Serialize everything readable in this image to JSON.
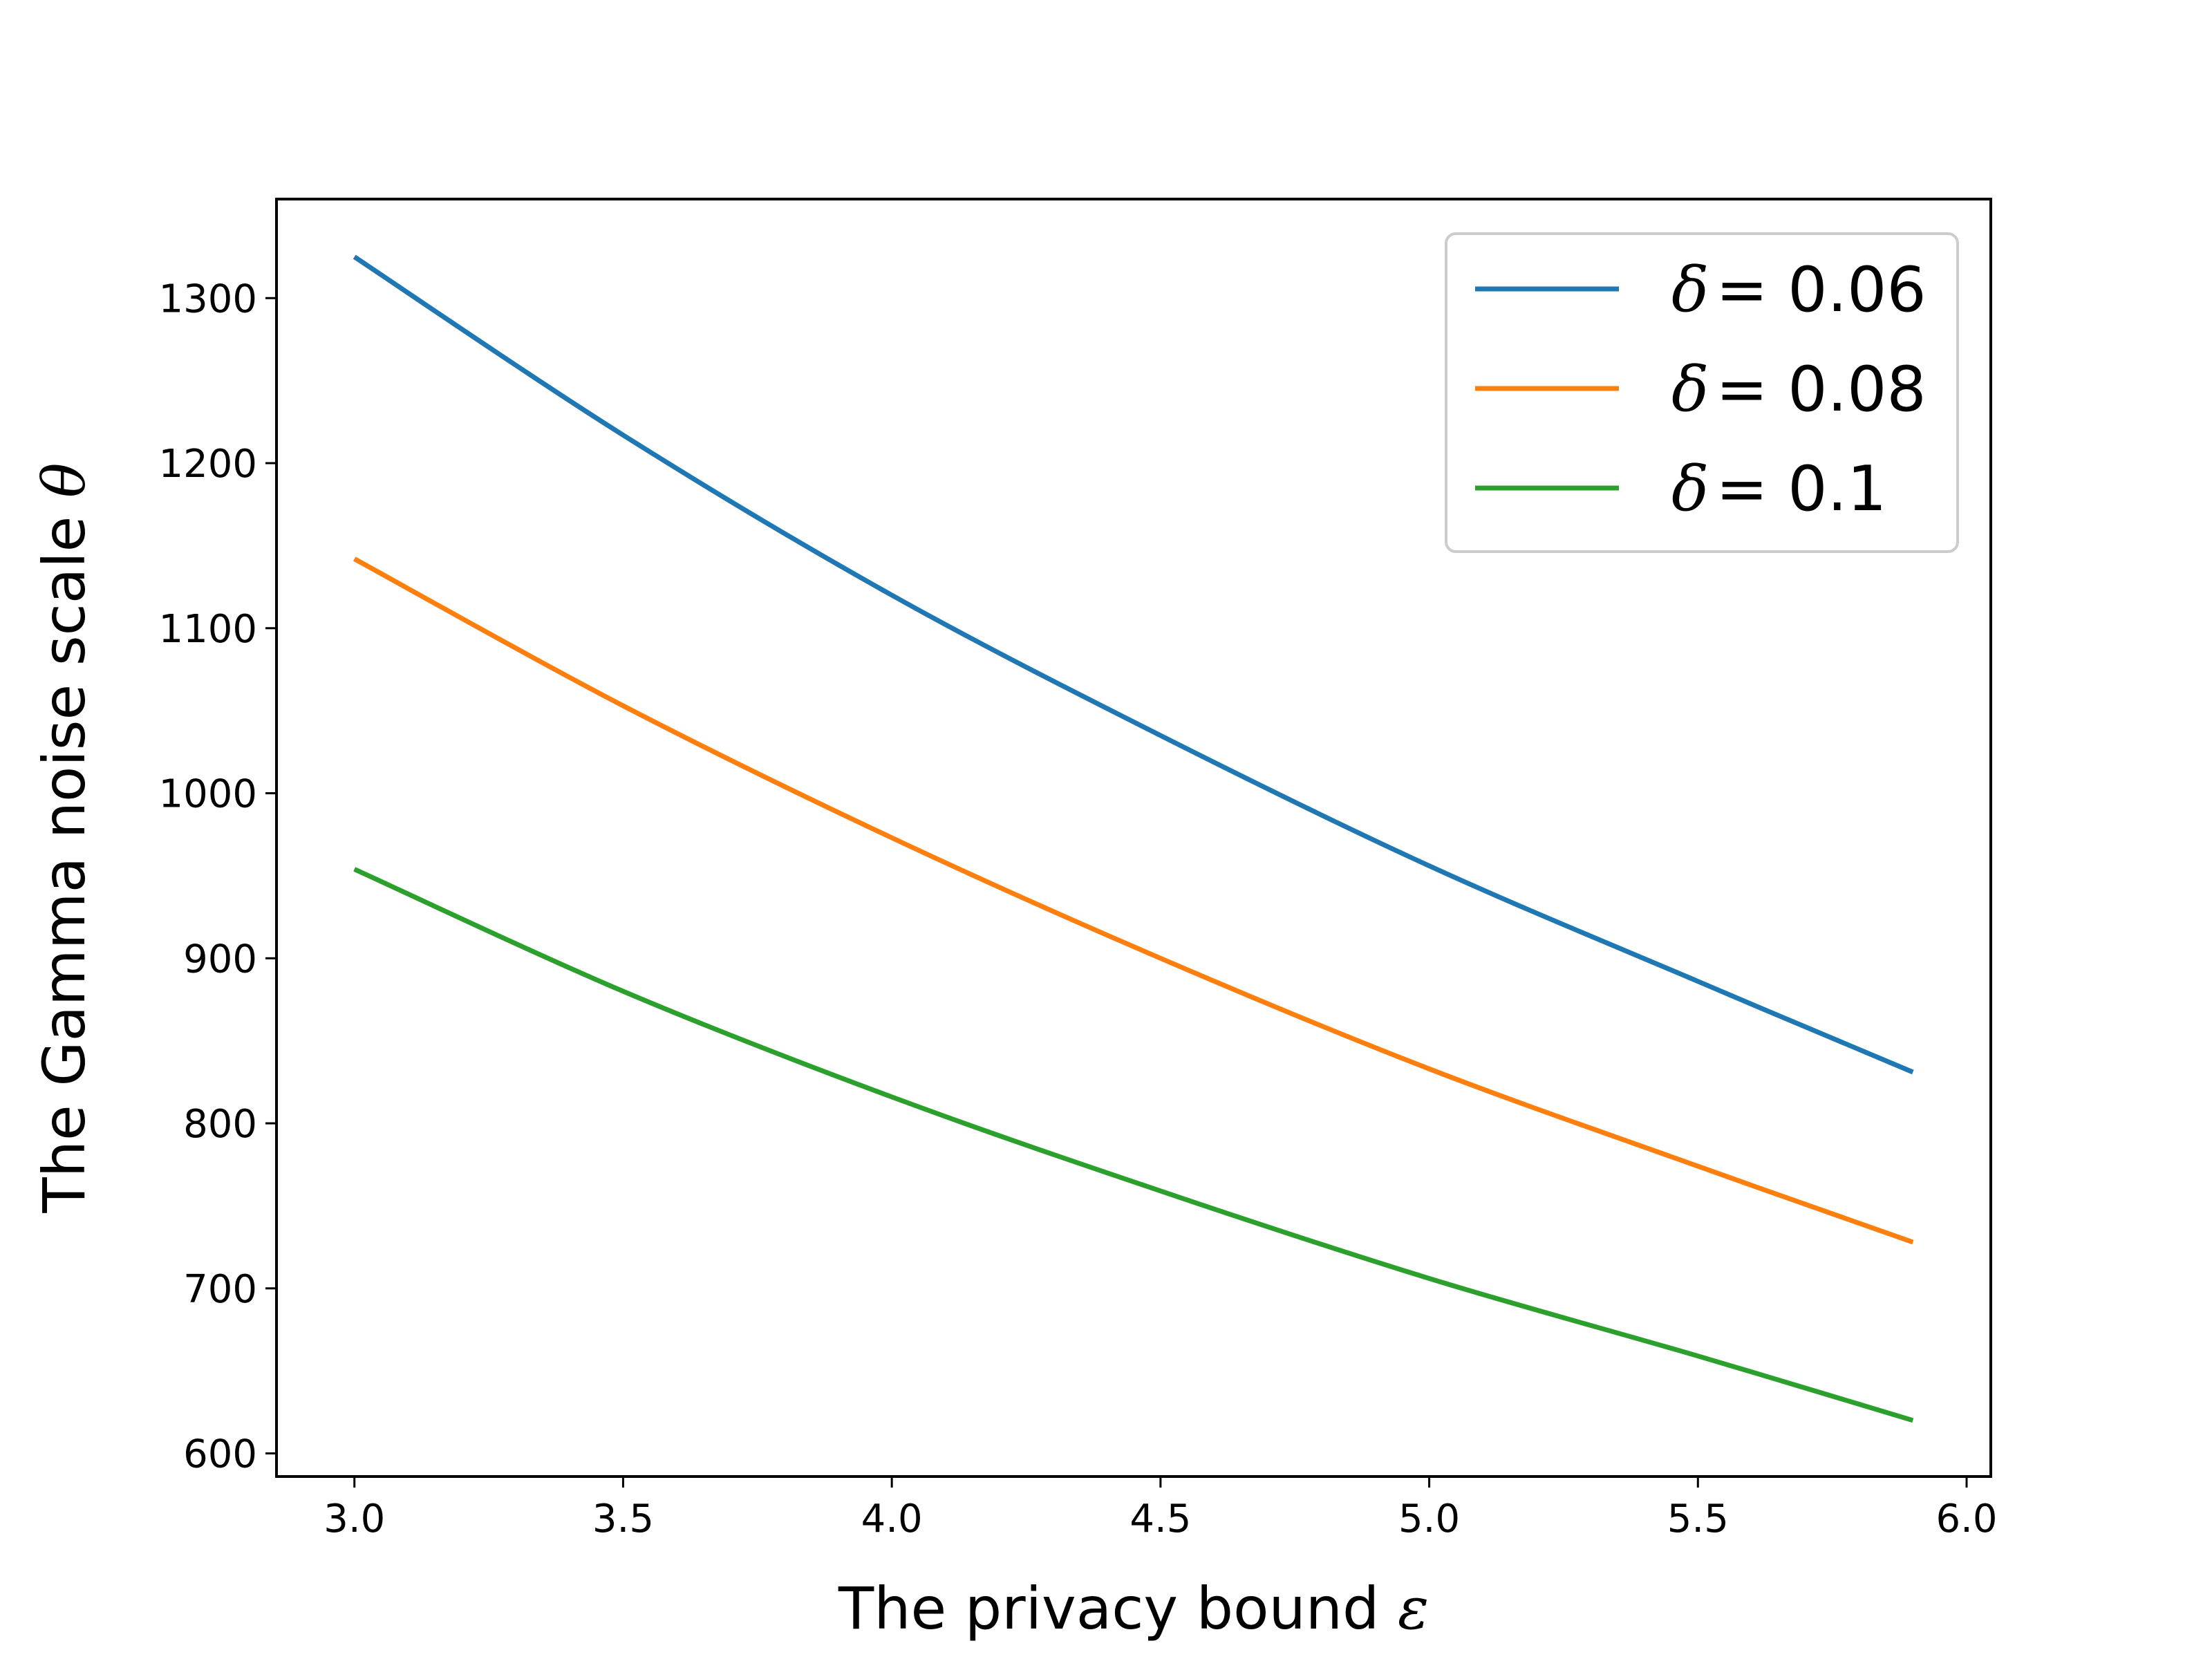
{
  "chart_data": {
    "type": "line",
    "xlabel_text": "The privacy bound ",
    "xlabel_symbol": "ε",
    "ylabel_text": "The Gamma noise scale ",
    "ylabel_symbol": "θ",
    "xlim": [
      2.855,
      6.045
    ],
    "ylim": [
      586,
      1360
    ],
    "x_ticks": [
      3.0,
      3.5,
      4.0,
      4.5,
      5.0,
      5.5,
      6.0
    ],
    "x_tick_labels": [
      "3.0",
      "3.5",
      "4.0",
      "4.5",
      "5.0",
      "5.5",
      "6.0"
    ],
    "y_ticks": [
      600,
      700,
      800,
      900,
      1000,
      1100,
      1200,
      1300
    ],
    "y_tick_labels": [
      "600",
      "700",
      "800",
      "900",
      "1000",
      "1100",
      "1200",
      "1300"
    ],
    "grid": false,
    "legend_position": "top-right",
    "x": [
      3.0,
      3.5,
      4.0,
      4.5,
      5.0,
      5.5,
      5.9
    ],
    "series": [
      {
        "name": "= 0.06",
        "symbol": "δ",
        "color": "#1f77b4",
        "values": [
          1325,
          1217,
          1120,
          1035,
          956,
          886,
          831
        ]
      },
      {
        "name": "= 0.08",
        "symbol": "δ",
        "color": "#ff7f0e",
        "values": [
          1142,
          1053,
          973,
          900,
          833,
          774,
          728
        ]
      },
      {
        "name": "= 0.1",
        "symbol": "δ",
        "color": "#2ca02c",
        "values": [
          954,
          880,
          816,
          759,
          706,
          659,
          620
        ]
      }
    ]
  }
}
